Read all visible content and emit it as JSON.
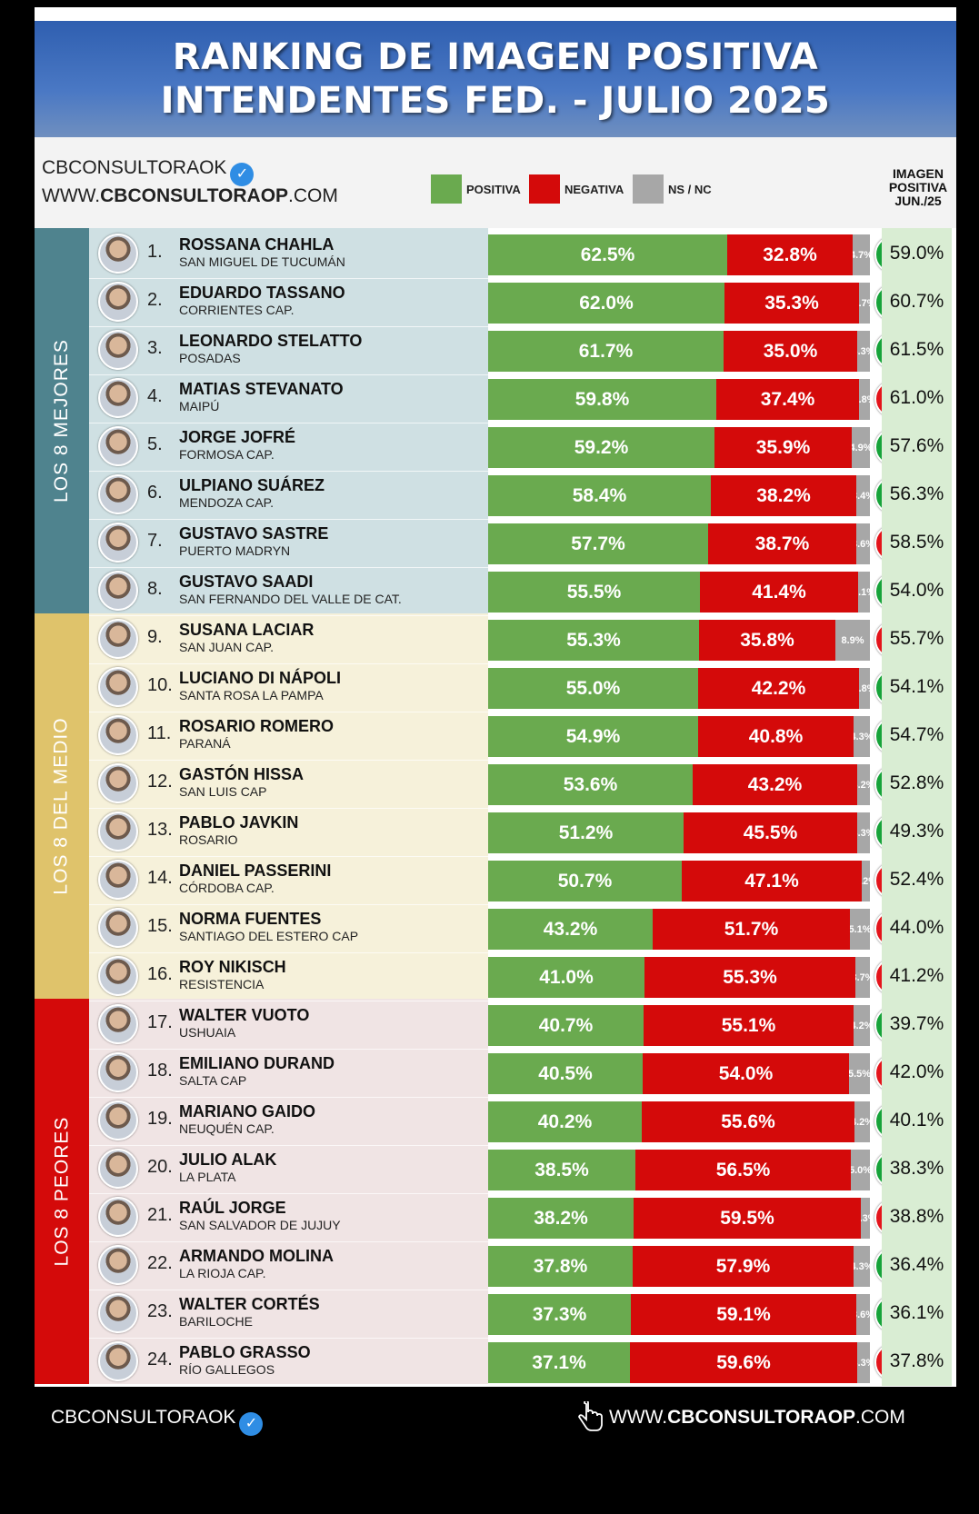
{
  "title": {
    "line1": "RANKING DE IMAGEN POSITIVA",
    "line2": "INTENDENTES FED. - JULIO 2025"
  },
  "brand": {
    "handle": "CBCONSULTORAOK",
    "site_prefix": "WWW.",
    "site_bold": "CBCONSULTORAOP",
    "site_suffix": ".COM",
    "verified_icon": "verified-badge-icon"
  },
  "legend": [
    {
      "label": "POSITIVA",
      "color": "#6aaa4f"
    },
    {
      "label": "NEGATIVA",
      "color": "#d40a0a"
    },
    {
      "label": "NS / NC",
      "color": "#a7a7a7"
    }
  ],
  "prev_header": [
    "IMAGEN",
    "POSITIVA",
    "JUN./25"
  ],
  "groups": [
    {
      "label": "LOS 8 MEJORES",
      "color": "#4f838e",
      "bg": "#cfe0e3"
    },
    {
      "label": "LOS 8 DEL MEDIO",
      "color": "#dfc36b",
      "bg": "#f6f1da"
    },
    {
      "label": "LOS 8 PEORES",
      "color": "#d40a0a",
      "bg": "#f0e4e4"
    }
  ],
  "chart_data": {
    "type": "bar",
    "title": "RANKING DE IMAGEN POSITIVA INTENDENTES FED. - JULIO 2025",
    "stacked": true,
    "series_names": [
      "POSITIVA",
      "NEGATIVA",
      "NS / NC"
    ],
    "rows": [
      {
        "rank": "1.",
        "name": "ROSSANA CHAHLA",
        "city": "SAN MIGUEL DE TUCUMÁN",
        "pos": 62.5,
        "neg": 32.8,
        "ns": 4.7,
        "trend": "up",
        "prev": 59.0,
        "pos_label": "62.5%",
        "neg_label": "32.8%",
        "ns_label": "4.7%",
        "prev_label": "59.0%"
      },
      {
        "rank": "2.",
        "name": "EDUARDO TASSANO",
        "city": "CORRIENTES CAP.",
        "pos": 62.0,
        "neg": 35.3,
        "ns": 2.7,
        "trend": "up",
        "prev": 60.7,
        "pos_label": "62.0%",
        "neg_label": "35.3%",
        "ns_label": "2.7%",
        "prev_label": "60.7%"
      },
      {
        "rank": "3.",
        "name": "LEONARDO STELATTO",
        "city": "POSADAS",
        "pos": 61.7,
        "neg": 35.0,
        "ns": 3.3,
        "trend": "up",
        "prev": 61.5,
        "pos_label": "61.7%",
        "neg_label": "35.0%",
        "ns_label": "3.3%",
        "prev_label": "61.5%"
      },
      {
        "rank": "4.",
        "name": "MATIAS STEVANATO",
        "city": "MAIPÚ",
        "pos": 59.8,
        "neg": 37.4,
        "ns": 2.8,
        "trend": "down",
        "prev": 61.0,
        "pos_label": "59.8%",
        "neg_label": "37.4%",
        "ns_label": "2.8%",
        "prev_label": "61.0%"
      },
      {
        "rank": "5.",
        "name": "JORGE JOFRÉ",
        "city": "FORMOSA CAP.",
        "pos": 59.2,
        "neg": 35.9,
        "ns": 4.9,
        "trend": "up",
        "prev": 57.6,
        "pos_label": "59.2%",
        "neg_label": "35.9%",
        "ns_label": "4.9%",
        "prev_label": "57.6%"
      },
      {
        "rank": "6.",
        "name": "ULPIANO SUÁREZ",
        "city": "MENDOZA CAP.",
        "pos": 58.4,
        "neg": 38.2,
        "ns": 3.4,
        "trend": "up",
        "prev": 56.3,
        "pos_label": "58.4%",
        "neg_label": "38.2%",
        "ns_label": "3.4%",
        "prev_label": "56.3%"
      },
      {
        "rank": "7.",
        "name": "GUSTAVO SASTRE",
        "city": "PUERTO MADRYN",
        "pos": 57.7,
        "neg": 38.7,
        "ns": 3.6,
        "trend": "down",
        "prev": 58.5,
        "pos_label": "57.7%",
        "neg_label": "38.7%",
        "ns_label": "3.6%",
        "prev_label": "58.5%"
      },
      {
        "rank": "8.",
        "name": "GUSTAVO SAADI",
        "city": "SAN FERNANDO DEL VALLE DE CAT.",
        "pos": 55.5,
        "neg": 41.4,
        "ns": 3.1,
        "trend": "up",
        "prev": 54.0,
        "pos_label": "55.5%",
        "neg_label": "41.4%",
        "ns_label": "3.1%",
        "prev_label": "54.0%"
      },
      {
        "rank": "9.",
        "name": "SUSANA LACIAR",
        "city": "SAN JUAN CAP.",
        "pos": 55.3,
        "neg": 35.8,
        "ns": 8.9,
        "trend": "down",
        "prev": 55.7,
        "pos_label": "55.3%",
        "neg_label": "35.8%",
        "ns_label": "8.9%",
        "prev_label": "55.7%"
      },
      {
        "rank": "10.",
        "name": "LUCIANO DI NÁPOLI",
        "city": "SANTA ROSA LA PAMPA",
        "pos": 55.0,
        "neg": 42.2,
        "ns": 2.8,
        "trend": "up",
        "prev": 54.1,
        "pos_label": "55.0%",
        "neg_label": "42.2%",
        "ns_label": "2.8%",
        "prev_label": "54.1%"
      },
      {
        "rank": "11.",
        "name": "ROSARIO ROMERO",
        "city": "PARANÁ",
        "pos": 54.9,
        "neg": 40.8,
        "ns": 4.3,
        "trend": "up",
        "prev": 54.7,
        "pos_label": "54.9%",
        "neg_label": "40.8%",
        "ns_label": "4.3%",
        "prev_label": "54.7%"
      },
      {
        "rank": "12.",
        "name": "GASTÓN HISSA",
        "city": "SAN LUIS CAP",
        "pos": 53.6,
        "neg": 43.2,
        "ns": 3.2,
        "trend": "up",
        "prev": 52.8,
        "pos_label": "53.6%",
        "neg_label": "43.2%",
        "ns_label": "3.2%",
        "prev_label": "52.8%"
      },
      {
        "rank": "13.",
        "name": "PABLO JAVKIN",
        "city": "ROSARIO",
        "pos": 51.2,
        "neg": 45.5,
        "ns": 3.3,
        "trend": "up",
        "prev": 49.3,
        "pos_label": "51.2%",
        "neg_label": "45.5%",
        "ns_label": "3.3%",
        "prev_label": "49.3%"
      },
      {
        "rank": "14.",
        "name": "DANIEL PASSERINI",
        "city": "CÓRDOBA CAP.",
        "pos": 50.7,
        "neg": 47.1,
        "ns": 2.2,
        "trend": "down",
        "prev": 52.4,
        "pos_label": "50.7%",
        "neg_label": "47.1%",
        "ns_label": "2.2%",
        "prev_label": "52.4%"
      },
      {
        "rank": "15.",
        "name": "NORMA FUENTES",
        "city": "SANTIAGO DEL ESTERO CAP",
        "pos": 43.2,
        "neg": 51.7,
        "ns": 5.1,
        "trend": "down",
        "prev": 44.0,
        "pos_label": "43.2%",
        "neg_label": "51.7%",
        "ns_label": "5.1%",
        "prev_label": "44.0%"
      },
      {
        "rank": "16.",
        "name": "ROY NIKISCH",
        "city": "RESISTENCIA",
        "pos": 41.0,
        "neg": 55.3,
        "ns": 3.7,
        "trend": "down",
        "prev": 41.2,
        "pos_label": "41.0%",
        "neg_label": "55.3%",
        "ns_label": "3.7%",
        "prev_label": "41.2%"
      },
      {
        "rank": "17.",
        "name": "WALTER VUOTO",
        "city": "USHUAIA",
        "pos": 40.7,
        "neg": 55.1,
        "ns": 4.2,
        "trend": "up",
        "prev": 39.7,
        "pos_label": "40.7%",
        "neg_label": "55.1%",
        "ns_label": "4.2%",
        "prev_label": "39.7%"
      },
      {
        "rank": "18.",
        "name": "EMILIANO DURAND",
        "city": "SALTA CAP",
        "pos": 40.5,
        "neg": 54.0,
        "ns": 5.5,
        "trend": "down",
        "prev": 42.0,
        "pos_label": "40.5%",
        "neg_label": "54.0%",
        "ns_label": "5.5%",
        "prev_label": "42.0%"
      },
      {
        "rank": "19.",
        "name": "MARIANO GAIDO",
        "city": "NEUQUÉN CAP.",
        "pos": 40.2,
        "neg": 55.6,
        "ns": 4.2,
        "trend": "up",
        "prev": 40.1,
        "pos_label": "40.2%",
        "neg_label": "55.6%",
        "ns_label": "4.2%",
        "prev_label": "40.1%"
      },
      {
        "rank": "20.",
        "name": "JULIO ALAK",
        "city": "LA PLATA",
        "pos": 38.5,
        "neg": 56.5,
        "ns": 5.0,
        "trend": "up",
        "prev": 38.3,
        "pos_label": "38.5%",
        "neg_label": "56.5%",
        "ns_label": "5.0%",
        "prev_label": "38.3%"
      },
      {
        "rank": "21.",
        "name": "RAÚL JORGE",
        "city": "SAN SALVADOR DE JUJUY",
        "pos": 38.2,
        "neg": 59.5,
        "ns": 2.3,
        "trend": "down",
        "prev": 38.8,
        "pos_label": "38.2%",
        "neg_label": "59.5%",
        "ns_label": "2.3%",
        "prev_label": "38.8%"
      },
      {
        "rank": "22.",
        "name": "ARMANDO MOLINA",
        "city": "LA RIOJA CAP.",
        "pos": 37.8,
        "neg": 57.9,
        "ns": 4.3,
        "trend": "up",
        "prev": 36.4,
        "pos_label": "37.8%",
        "neg_label": "57.9%",
        "ns_label": "4.3%",
        "prev_label": "36.4%"
      },
      {
        "rank": "23.",
        "name": "WALTER CORTÉS",
        "city": "BARILOCHE",
        "pos": 37.3,
        "neg": 59.1,
        "ns": 3.6,
        "trend": "up",
        "prev": 36.1,
        "pos_label": "37.3%",
        "neg_label": "59.1%",
        "ns_label": "3.6%",
        "prev_label": "36.1%"
      },
      {
        "rank": "24.",
        "name": "PABLO GRASSO",
        "city": "RÍO GALLEGOS",
        "pos": 37.1,
        "neg": 59.6,
        "ns": 3.3,
        "trend": "down",
        "prev": 37.8,
        "pos_label": "37.1%",
        "neg_label": "59.6%",
        "ns_label": "3.3%",
        "prev_label": "37.8%"
      }
    ]
  },
  "footer": {
    "handle": "CBCONSULTORAOK",
    "site_prefix": "WWW.",
    "site_bold": "CBCONSULTORAOP",
    "site_suffix": ".COM",
    "pointer_icon": "hand-pointer-icon"
  }
}
